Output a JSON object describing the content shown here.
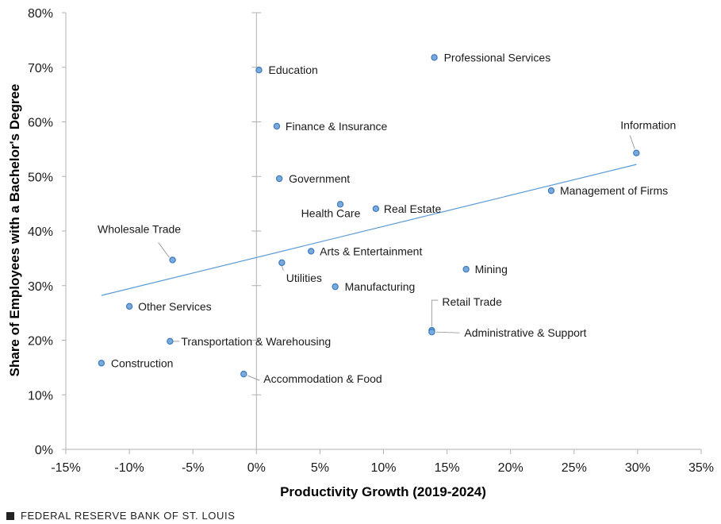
{
  "chart_data": {
    "type": "scatter",
    "title": "",
    "xlabel": "Productivity Growth (2019-2024)",
    "ylabel": "Share of Employees with a Bachelor's Degree",
    "xlim": [
      -15,
      35
    ],
    "ylim": [
      0,
      80
    ],
    "x_ticks": [
      "-15%",
      "-10%",
      "-5%",
      "0%",
      "5%",
      "10%",
      "15%",
      "20%",
      "25%",
      "30%",
      "35%"
    ],
    "y_ticks": [
      "0%",
      "10%",
      "20%",
      "30%",
      "40%",
      "50%",
      "60%",
      "70%",
      "80%"
    ],
    "grid": false,
    "legend": "none",
    "point_color": "#7aaadc",
    "point_stroke": "#3d7bbf",
    "trendline": {
      "color": "#5b9bd5",
      "x": [
        -12.2,
        29.9
      ],
      "y": [
        28.2,
        52.2
      ]
    },
    "points": [
      {
        "label": "Professional Services",
        "x": 14.0,
        "y": 71.8
      },
      {
        "label": "Education",
        "x": 0.2,
        "y": 69.5
      },
      {
        "label": "Finance & Insurance",
        "x": 1.6,
        "y": 59.2
      },
      {
        "label": "Information",
        "x": 29.9,
        "y": 54.3
      },
      {
        "label": "Government",
        "x": 1.8,
        "y": 49.6
      },
      {
        "label": "Management of Firms",
        "x": 23.2,
        "y": 47.4
      },
      {
        "label": "Health Care",
        "x": 6.6,
        "y": 44.9
      },
      {
        "label": "Real Estate",
        "x": 9.4,
        "y": 44.1
      },
      {
        "label": "Wholesale Trade",
        "x": -6.6,
        "y": 34.7
      },
      {
        "label": "Arts & Entertainment",
        "x": 4.3,
        "y": 36.3
      },
      {
        "label": "Utilities",
        "x": 2.0,
        "y": 34.2
      },
      {
        "label": "Mining",
        "x": 16.5,
        "y": 33.0
      },
      {
        "label": "Manufacturing",
        "x": 6.2,
        "y": 29.8
      },
      {
        "label": "Other Services",
        "x": -10.0,
        "y": 26.2
      },
      {
        "label": "Retail Trade",
        "x": 13.8,
        "y": 21.8
      },
      {
        "label": "Administrative & Support",
        "x": 13.8,
        "y": 21.5
      },
      {
        "label": "Transportation & Warehousing",
        "x": -6.8,
        "y": 19.8
      },
      {
        "label": "Construction",
        "x": -12.2,
        "y": 15.8
      },
      {
        "label": "Accommodation  & Food",
        "x": -1.0,
        "y": 13.8
      }
    ]
  },
  "footer": {
    "text": "FEDERAL RESERVE BANK OF ST. LOUIS"
  }
}
